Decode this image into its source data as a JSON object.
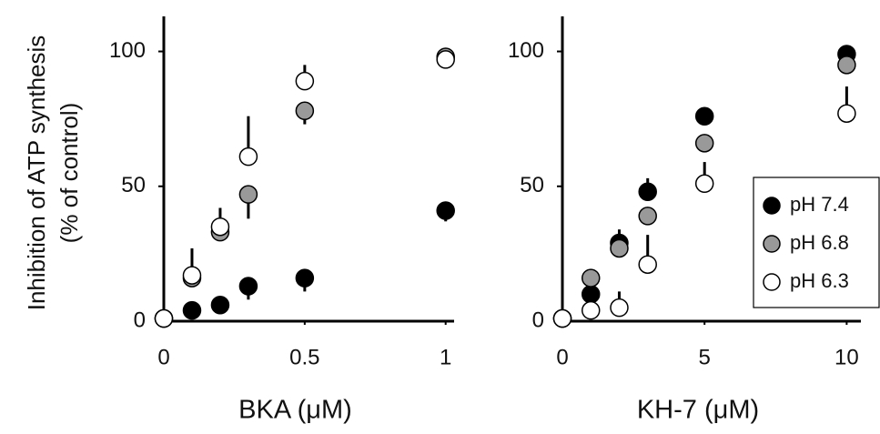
{
  "chart_data": [
    {
      "type": "scatter",
      "xlabel": "BKA (μM)",
      "ylabel": [
        "Inhibition of  ATP synthesis",
        "(% of control)"
      ],
      "x": [
        0,
        0.1,
        0.2,
        0.3,
        0.5,
        1
      ],
      "xlim": [
        0,
        1.03
      ],
      "ylim": [
        0,
        113
      ],
      "xticks": [
        0,
        0.5,
        1
      ],
      "yticks": [
        0,
        50,
        100
      ],
      "series": [
        {
          "color": "#000000",
          "values": [
            1,
            4,
            6,
            13,
            16,
            41
          ],
          "errors": [
            null,
            null,
            null,
            5,
            5,
            4
          ],
          "error_direction": "down"
        },
        {
          "color": "#999999",
          "values": [
            1,
            16,
            33,
            47,
            78,
            98
          ],
          "errors": [
            null,
            null,
            null,
            9,
            5,
            null
          ],
          "error_direction": "down"
        },
        {
          "color": "#ffffff",
          "values": [
            1,
            17,
            35,
            61,
            89,
            97
          ],
          "errors": [
            null,
            10,
            7,
            15,
            6,
            null
          ],
          "error_direction": "up"
        }
      ]
    },
    {
      "type": "scatter",
      "xlabel": "KH-7 (μM)",
      "x": [
        0,
        1,
        2,
        3,
        5,
        10
      ],
      "xlim": [
        0,
        10.5
      ],
      "ylim": [
        0,
        113
      ],
      "xticks": [
        0,
        5,
        10
      ],
      "yticks": [
        0,
        50,
        100
      ],
      "legend": "right",
      "series": [
        {
          "name": "pH 7.4",
          "color": "#000000",
          "values": [
            1,
            10,
            29,
            48,
            76,
            99
          ],
          "errors": [
            null,
            null,
            5,
            5,
            null,
            null
          ],
          "error_direction": "up"
        },
        {
          "name": "pH 6.8",
          "color": "#999999",
          "values": [
            1,
            16,
            27,
            39,
            66,
            95
          ],
          "errors": [
            null,
            null,
            null,
            null,
            null,
            null
          ],
          "error_direction": "up"
        },
        {
          "name": "pH 6.3",
          "color": "#ffffff",
          "values": [
            1,
            4,
            5,
            21,
            51,
            77
          ],
          "errors": [
            null,
            null,
            6,
            11,
            8,
            10
          ],
          "error_direction": "up"
        }
      ]
    }
  ]
}
